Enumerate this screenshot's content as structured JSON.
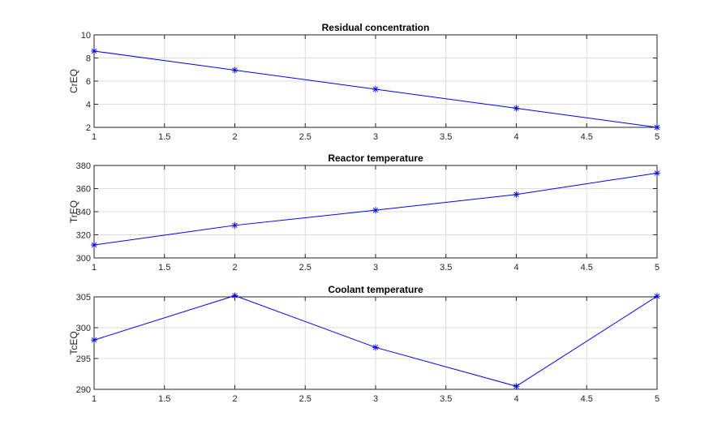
{
  "chart_data": [
    {
      "type": "line",
      "title": "Residual concentration",
      "xlabel": "",
      "ylabel": "CrEQ",
      "xlim": [
        1,
        5
      ],
      "ylim": [
        2,
        10
      ],
      "xticks": [
        1,
        1.5,
        2,
        2.5,
        3,
        3.5,
        4,
        4.5,
        5
      ],
      "yticks": [
        2,
        4,
        6,
        8,
        10
      ],
      "grid": true,
      "marker": "asterisk",
      "color": "#0000ff",
      "x": [
        1,
        2,
        3,
        4,
        5
      ],
      "y": [
        8.6,
        6.95,
        5.3,
        3.65,
        2.0
      ]
    },
    {
      "type": "line",
      "title": "Reactor temperature",
      "xlabel": "",
      "ylabel": "TrEQ",
      "xlim": [
        1,
        5
      ],
      "ylim": [
        300,
        380
      ],
      "xticks": [
        1,
        1.5,
        2,
        2.5,
        3,
        3.5,
        4,
        4.5,
        5
      ],
      "yticks": [
        300,
        320,
        340,
        360,
        380
      ],
      "grid": true,
      "marker": "asterisk",
      "color": "#0000ff",
      "x": [
        1,
        2,
        3,
        4,
        5
      ],
      "y": [
        311.2,
        328.2,
        341.3,
        354.9,
        373.4
      ]
    },
    {
      "type": "line",
      "title": "Coolant temperature",
      "xlabel": "",
      "ylabel": "TcEQ",
      "xlim": [
        1,
        5
      ],
      "ylim": [
        290,
        305
      ],
      "xticks": [
        1,
        1.5,
        2,
        2.5,
        3,
        3.5,
        4,
        4.5,
        5
      ],
      "yticks": [
        290,
        295,
        300,
        305
      ],
      "grid": true,
      "marker": "asterisk",
      "color": "#0000ff",
      "x": [
        1,
        2,
        3,
        4,
        5
      ],
      "y": [
        298.0,
        305.2,
        296.8,
        290.5,
        305.1
      ]
    }
  ]
}
